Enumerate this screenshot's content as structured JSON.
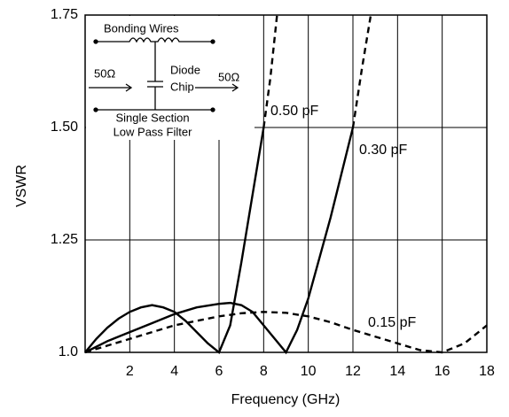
{
  "chart_data": {
    "type": "line",
    "xlabel": "Frequency (GHz)",
    "ylabel": "VSWR",
    "xlim": [
      0,
      18
    ],
    "ylim": [
      1,
      1.75
    ],
    "xticks": [
      2,
      4,
      6,
      8,
      10,
      12,
      14,
      16,
      18
    ],
    "yticks": [
      {
        "value": 1,
        "label": "1.0"
      },
      1.25,
      {
        "value": 1.5,
        "label": "1.50"
      },
      1.75
    ],
    "grid": true,
    "color": "#000000",
    "series": [
      {
        "name": "0.50 pF",
        "style": "solid",
        "x": [
          0,
          0.5,
          1,
          1.5,
          2,
          2.5,
          3,
          3.5,
          4,
          4.5,
          5,
          5.5,
          6,
          6.5,
          7,
          7.5,
          8
        ],
        "values": [
          1.0,
          1.03,
          1.055,
          1.075,
          1.09,
          1.1,
          1.105,
          1.1,
          1.09,
          1.07,
          1.045,
          1.02,
          1.0,
          1.06,
          1.2,
          1.35,
          1.5
        ]
      },
      {
        "style": "dashed",
        "x": [
          8,
          8.3,
          8.6
        ],
        "values": [
          1.5,
          1.61,
          1.75
        ]
      },
      {
        "name": "0.30 pF",
        "style": "solid",
        "x": [
          0,
          1,
          2,
          3,
          4,
          5,
          6,
          6.5,
          7,
          7.5,
          8,
          8.5,
          9,
          9.5,
          10,
          11,
          12
        ],
        "values": [
          1.0,
          1.025,
          1.045,
          1.065,
          1.085,
          1.1,
          1.108,
          1.11,
          1.105,
          1.09,
          1.06,
          1.03,
          1.0,
          1.05,
          1.12,
          1.3,
          1.5
        ]
      },
      {
        "style": "dashed",
        "x": [
          12,
          12.4,
          12.8
        ],
        "values": [
          1.5,
          1.63,
          1.75
        ]
      },
      {
        "name": "0.15 pF",
        "style": "dashed",
        "x": [
          0,
          1,
          2,
          3,
          4,
          5,
          6,
          7,
          8,
          9,
          10,
          11,
          12,
          13,
          14,
          15,
          16,
          17,
          18
        ],
        "values": [
          1.0,
          1.015,
          1.03,
          1.045,
          1.06,
          1.07,
          1.08,
          1.087,
          1.09,
          1.088,
          1.08,
          1.067,
          1.05,
          1.035,
          1.02,
          1.005,
          1.0,
          1.02,
          1.06
        ]
      }
    ],
    "inset": {
      "title": "Bonding Wires",
      "input": "50Ω",
      "diode": "Diode",
      "chip": "Chip",
      "output": "50Ω",
      "caption": [
        "Single Section",
        "Low Pass Filter"
      ]
    }
  }
}
